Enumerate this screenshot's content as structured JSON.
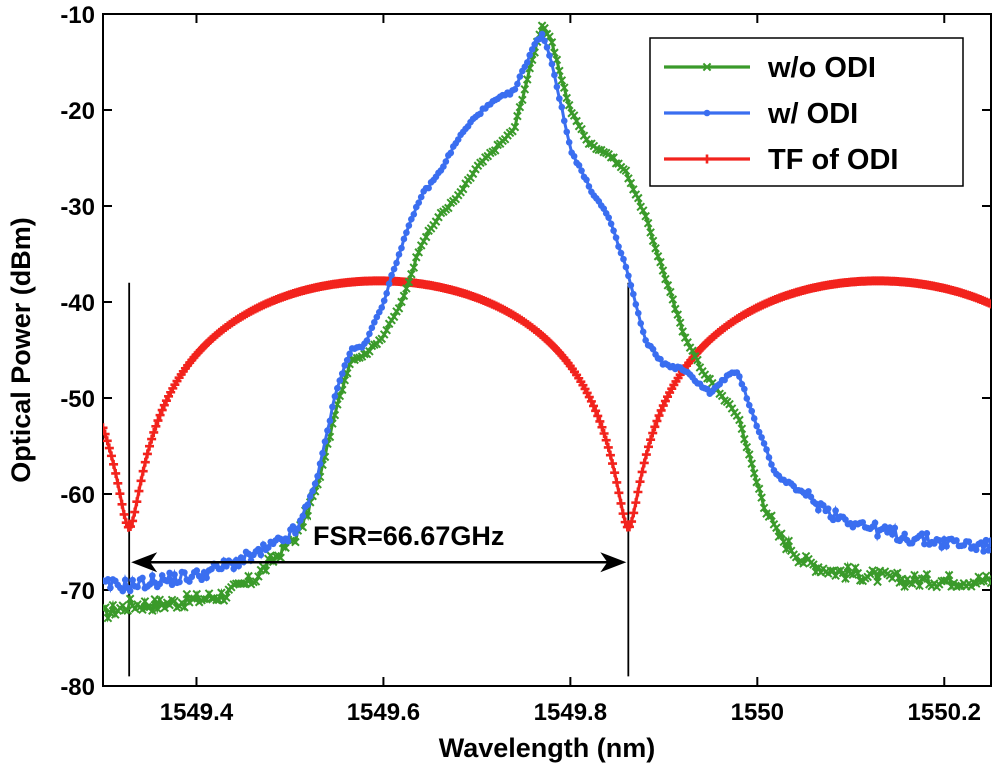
{
  "chart_data": {
    "type": "line",
    "title": "",
    "xlabel": "Wavelength (nm)",
    "ylabel": "Optical Power (dBm)",
    "xlim": [
      1549.3,
      1550.25
    ],
    "ylim": [
      -80,
      -10
    ],
    "xticks": [
      1549.4,
      1549.6,
      1549.8,
      1550,
      1550.2
    ],
    "xtick_labels": [
      "1549.4",
      "1549.6",
      "1549.8",
      "1550",
      "1550.2"
    ],
    "yticks": [
      -80,
      -70,
      -60,
      -50,
      -40,
      -30,
      -20,
      -10
    ],
    "ytick_labels": [
      "-80",
      "-70",
      "-60",
      "-50",
      "-40",
      "-30",
      "-20",
      "-10"
    ],
    "grid": false,
    "legend_position": "top-right",
    "series": [
      {
        "name": "w/o ODI",
        "color": "#3a9a2a",
        "marker": "x",
        "x": [
          1549.3,
          1549.33,
          1549.36,
          1549.4,
          1549.43,
          1549.46,
          1549.49,
          1549.51,
          1549.53,
          1549.55,
          1549.565,
          1549.58,
          1549.6,
          1549.62,
          1549.64,
          1549.66,
          1549.68,
          1549.7,
          1549.72,
          1549.74,
          1549.76,
          1549.77,
          1549.78,
          1549.8,
          1549.82,
          1549.84,
          1549.86,
          1549.88,
          1549.9,
          1549.92,
          1549.94,
          1549.96,
          1549.98,
          1550.0,
          1550.02,
          1550.05,
          1550.08,
          1550.12,
          1550.16,
          1550.2,
          1550.25
        ],
        "y": [
          -72.5,
          -71.5,
          -71.5,
          -71.0,
          -70.5,
          -69.0,
          -66.0,
          -64.0,
          -59.0,
          -51.0,
          -46.0,
          -45.5,
          -43.5,
          -40.0,
          -34.0,
          -31.0,
          -29.0,
          -26.0,
          -24.0,
          -22.0,
          -14.5,
          -11.0,
          -13.0,
          -20.0,
          -23.5,
          -24.5,
          -26.5,
          -31.0,
          -37.0,
          -43.0,
          -47.0,
          -49.5,
          -52.0,
          -59.0,
          -64.0,
          -67.0,
          -68.0,
          -68.5,
          -69.0,
          -69.0,
          -69.0
        ]
      },
      {
        "name": "w/ ODI",
        "color": "#3a6ef0",
        "marker": "o",
        "x": [
          1549.3,
          1549.33,
          1549.36,
          1549.4,
          1549.43,
          1549.46,
          1549.49,
          1549.51,
          1549.53,
          1549.55,
          1549.565,
          1549.58,
          1549.6,
          1549.62,
          1549.64,
          1549.66,
          1549.68,
          1549.7,
          1549.72,
          1549.74,
          1549.76,
          1549.77,
          1549.78,
          1549.8,
          1549.82,
          1549.84,
          1549.86,
          1549.88,
          1549.9,
          1549.92,
          1549.95,
          1549.97,
          1549.98,
          1550.0,
          1550.02,
          1550.05,
          1550.08,
          1550.12,
          1550.16,
          1550.2,
          1550.25
        ],
        "y": [
          -69.5,
          -69.5,
          -69.0,
          -68.5,
          -67.5,
          -66.5,
          -65.0,
          -63.5,
          -58.0,
          -49.0,
          -45.0,
          -44.5,
          -40.0,
          -34.0,
          -29.0,
          -26.5,
          -23.0,
          -20.5,
          -19.0,
          -18.0,
          -13.5,
          -12.0,
          -15.0,
          -24.0,
          -28.0,
          -31.0,
          -36.5,
          -44.0,
          -46.5,
          -47.0,
          -49.5,
          -47.5,
          -47.5,
          -53.0,
          -58.0,
          -60.0,
          -62.0,
          -63.5,
          -64.5,
          -65.0,
          -65.5
        ]
      },
      {
        "name": "TF of ODI",
        "color": "#f2231d",
        "marker": "+",
        "fsr_nm": 0.534,
        "notch_wavelengths_nm": [
          1549.328,
          1549.862
        ],
        "peak_dBm": -37.8,
        "notch_dBm": -63.5
      }
    ],
    "annotations": [
      {
        "text": "FSR=66.67GHz",
        "type": "double-arrow",
        "x_start": 1549.328,
        "x_end": 1549.862,
        "y": -67.0
      },
      {
        "type": "vertical-line",
        "x": 1549.328,
        "y_range": [
          -79,
          -38
        ]
      },
      {
        "type": "vertical-line",
        "x": 1549.862,
        "y_range": [
          -79,
          -38
        ]
      }
    ]
  }
}
